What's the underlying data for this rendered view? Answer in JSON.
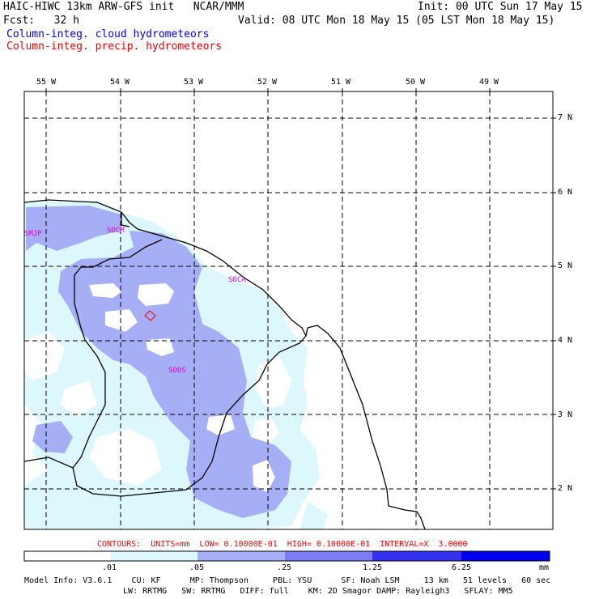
{
  "header": {
    "model_title": "HAIC-HIWC 13km ARW-GFS init   NCAR/MMM",
    "fcst_label": "Fcst:   32 h",
    "init_time": "Init: 00 UTC Sun 17 May 15",
    "valid_time": "Valid: 08 UTC Mon 18 May 15 (05 LST Mon 18 May 15)",
    "field_cloud": "Column-integ. cloud hydrometeors",
    "field_precip": "Column-integ. precip. hydrometeors"
  },
  "map": {
    "lon_labels": [
      "55 W",
      "54 W",
      "53 W",
      "52 W",
      "51 W",
      "50 W",
      "49 W"
    ],
    "lat_labels": [
      "7 N",
      "6 N",
      "5 N",
      "4 N",
      "3 N",
      "2 N"
    ],
    "stations": [
      "SMJP",
      "SOCM",
      "SOCA",
      "SOOS"
    ],
    "colors": {
      "cloud_light": "#dcf8fc",
      "cloud_medium": "#a6aef5",
      "cloud_strong": "#6464f0",
      "cloud_max": "#0000f0",
      "precip_contour": "#ee0000"
    }
  },
  "contour_info": "CONTOURS:  UNITS=mm  LOW= 0.10000E-01  HIGH= 0.10000E-01  INTERVAL=X  3.0000",
  "colorbar": {
    "ticks": [
      ".01",
      ".05",
      ".25",
      "1.25",
      "6.25"
    ],
    "unit": "mm",
    "colors": [
      "#ffffff",
      "#dcf8fc",
      "#a6aef5",
      "#7c7cf4",
      "#3232f0",
      "#0000f0"
    ]
  },
  "footer": {
    "line1": "Model Info: V3.6.1    CU: KF      MP: Thompson     PBL: YSU      SF: Noah LSM     13 km   51 levels   60 sec",
    "line2": "LW: RRTMG   SW: RRTMG   DIFF: full    KM: 2D Smagor DAMP: Rayleigh3   SFLAY: MM5"
  }
}
